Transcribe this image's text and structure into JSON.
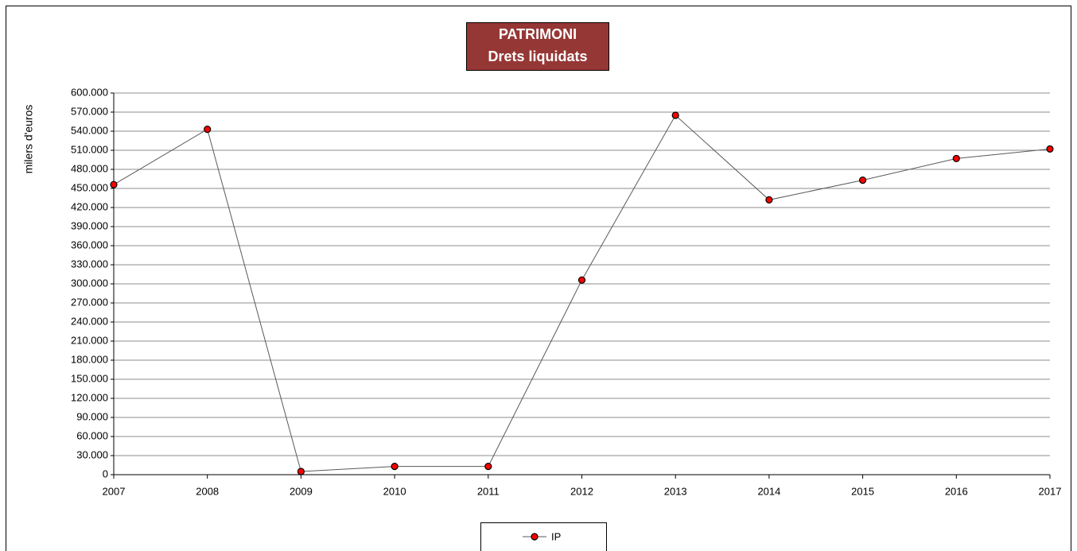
{
  "chart_data": {
    "type": "line",
    "title": "PATRIMONI",
    "subtitle": "Drets liquidats",
    "y_label": "milers d'euros",
    "categories": [
      "2007",
      "2008",
      "2009",
      "2010",
      "2011",
      "2012",
      "2013",
      "2014",
      "2015",
      "2016",
      "2017"
    ],
    "series": [
      {
        "name": "IP",
        "color": "#ff0000",
        "line_color": "#595959",
        "values": [
          456000,
          543000,
          5000,
          13000,
          13000,
          306000,
          565000,
          432000,
          463000,
          497000,
          512000
        ]
      }
    ],
    "ylim": [
      0,
      600000
    ],
    "yticks": [
      0,
      {
        "value": 30000,
        "label": "30.000"
      },
      {
        "value": 60000,
        "label": "60.000"
      },
      {
        "value": 90000,
        "label": "90.000"
      },
      {
        "value": 120000,
        "label": "120.000"
      },
      {
        "value": 150000,
        "label": "150.000"
      },
      {
        "value": 180000,
        "label": "180.000"
      },
      {
        "value": 210000,
        "label": "210.000"
      },
      {
        "value": 240000,
        "label": "240.000"
      },
      {
        "value": 270000,
        "label": "270.000"
      },
      {
        "value": 300000,
        "label": "300.000"
      },
      {
        "value": 330000,
        "label": "330.000"
      },
      {
        "value": 360000,
        "label": "360.000"
      },
      {
        "value": 390000,
        "label": "390.000"
      },
      {
        "value": 420000,
        "label": "420.000"
      },
      {
        "value": 450000,
        "label": "450.000"
      },
      {
        "value": 480000,
        "label": "480.000"
      },
      {
        "value": 510000,
        "label": "510.000"
      },
      {
        "value": 540000,
        "label": "540.000"
      },
      {
        "value": 570000,
        "label": "570.000"
      },
      {
        "value": 600000,
        "label": "600.000"
      }
    ],
    "grid": true,
    "legend": "bottom",
    "title_background": "#953735"
  }
}
